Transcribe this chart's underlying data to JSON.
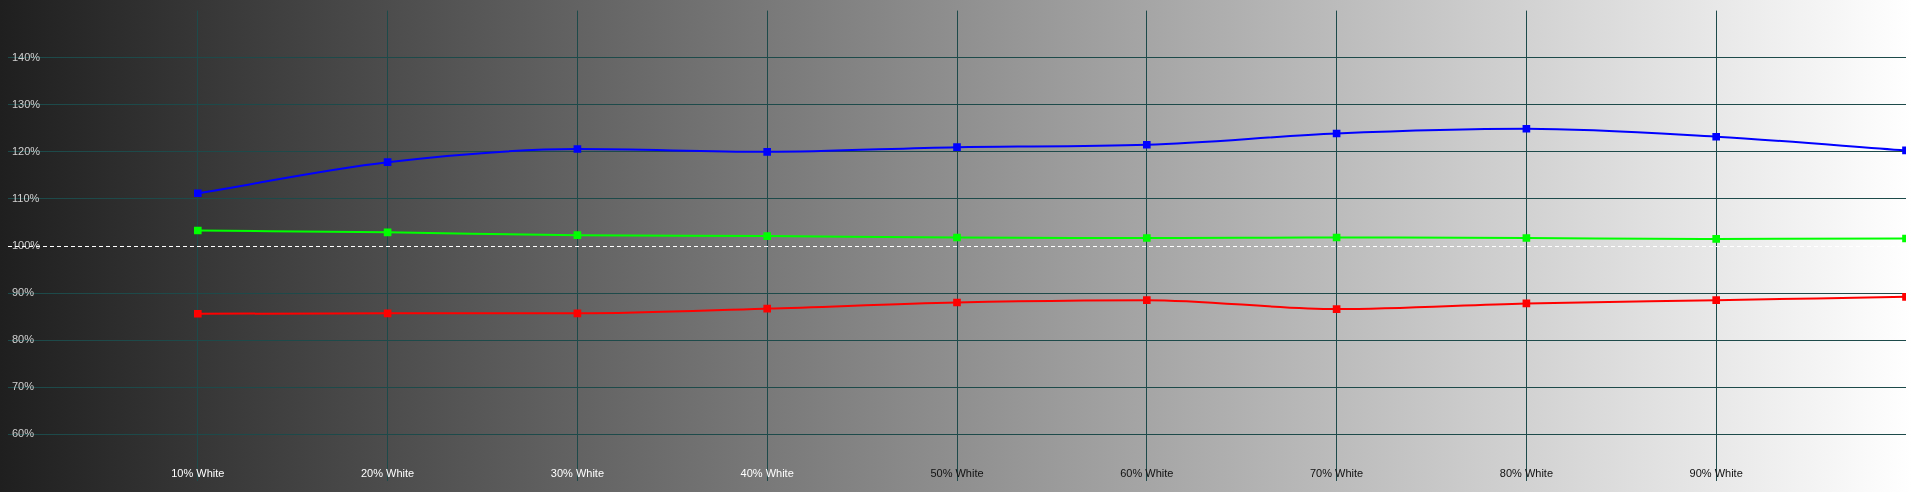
{
  "chart_data": {
    "type": "line",
    "x": [
      10,
      20,
      30,
      40,
      50,
      60,
      70,
      80,
      90,
      100
    ],
    "series": [
      {
        "color": "#0000ff",
        "values": [
          111.2,
          117.8,
          120.6,
          120.0,
          121.0,
          121.5,
          123.9,
          124.9,
          123.2,
          120.3
        ]
      },
      {
        "color": "#00ff00",
        "values": [
          103.3,
          102.9,
          102.3,
          102.1,
          101.8,
          101.7,
          101.8,
          101.7,
          101.5,
          101.6
        ]
      },
      {
        "color": "#ff0000",
        "values": [
          85.6,
          85.7,
          85.7,
          86.7,
          88.0,
          88.5,
          86.6,
          87.8,
          88.5,
          89.2
        ]
      }
    ],
    "xlim": [
      0,
      100
    ],
    "xticks": [
      {
        "value": 10,
        "label": "10% White"
      },
      {
        "value": 20,
        "label": "20% White"
      },
      {
        "value": 30,
        "label": "30% White"
      },
      {
        "value": 40,
        "label": "40% White"
      },
      {
        "value": 50,
        "label": "50% White"
      },
      {
        "value": 60,
        "label": "60% White"
      },
      {
        "value": 70,
        "label": "70% White"
      },
      {
        "value": 80,
        "label": "80% White"
      },
      {
        "value": 90,
        "label": "90% White"
      }
    ],
    "ylim": [
      50,
      150
    ],
    "yticks": [
      {
        "value": 60,
        "label": "60%"
      },
      {
        "value": 70,
        "label": "70%"
      },
      {
        "value": 80,
        "label": "80%"
      },
      {
        "value": 90,
        "label": "90%"
      },
      {
        "value": 100,
        "label": "100%"
      },
      {
        "value": 110,
        "label": "110%"
      },
      {
        "value": 120,
        "label": "120%"
      },
      {
        "value": 130,
        "label": "130%"
      },
      {
        "value": 140,
        "label": "140%"
      }
    ],
    "ref_lines": [
      {
        "axis": "y",
        "value": 100,
        "color": "#ffffff",
        "line_style": "dashed"
      }
    ],
    "grid": true,
    "legend": false,
    "marker": "square",
    "line_style": "solid"
  }
}
